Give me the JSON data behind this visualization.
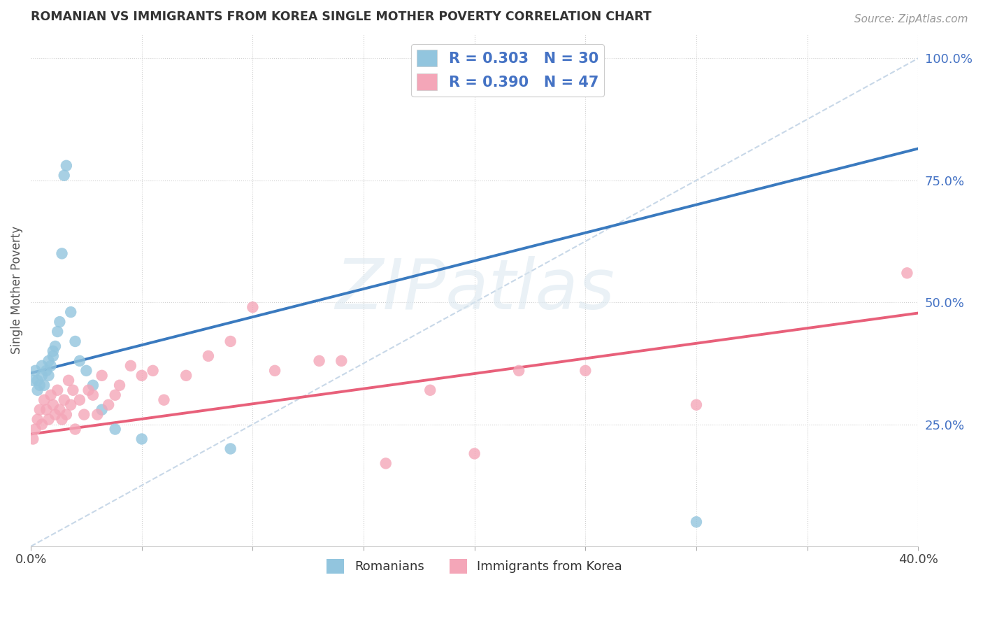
{
  "title": "ROMANIAN VS IMMIGRANTS FROM KOREA SINGLE MOTHER POVERTY CORRELATION CHART",
  "source": "Source: ZipAtlas.com",
  "ylabel": "Single Mother Poverty",
  "xlim": [
    0.0,
    0.4
  ],
  "ylim": [
    0.0,
    1.05
  ],
  "romanian_R": 0.303,
  "romanian_N": 30,
  "korea_R": 0.39,
  "korea_N": 47,
  "romanian_color": "#92c5de",
  "korea_color": "#f4a6b8",
  "trendline_romanian_color": "#3a7abf",
  "trendline_korea_color": "#e8607a",
  "diagonal_color": "#c8d8e8",
  "watermark": "ZIPatlas",
  "romanian_x": [
    0.001,
    0.002,
    0.003,
    0.003,
    0.004,
    0.005,
    0.005,
    0.006,
    0.007,
    0.008,
    0.008,
    0.009,
    0.01,
    0.01,
    0.011,
    0.012,
    0.013,
    0.014,
    0.015,
    0.016,
    0.018,
    0.02,
    0.022,
    0.025,
    0.028,
    0.032,
    0.038,
    0.05,
    0.09,
    0.3
  ],
  "romanian_y": [
    0.34,
    0.36,
    0.32,
    0.34,
    0.33,
    0.35,
    0.37,
    0.33,
    0.36,
    0.35,
    0.38,
    0.37,
    0.4,
    0.39,
    0.41,
    0.44,
    0.46,
    0.6,
    0.76,
    0.78,
    0.48,
    0.42,
    0.38,
    0.36,
    0.33,
    0.28,
    0.24,
    0.22,
    0.2,
    0.05
  ],
  "korea_x": [
    0.001,
    0.002,
    0.003,
    0.004,
    0.005,
    0.006,
    0.007,
    0.008,
    0.009,
    0.01,
    0.011,
    0.012,
    0.013,
    0.014,
    0.015,
    0.016,
    0.017,
    0.018,
    0.019,
    0.02,
    0.022,
    0.024,
    0.026,
    0.028,
    0.03,
    0.032,
    0.035,
    0.038,
    0.04,
    0.045,
    0.05,
    0.055,
    0.06,
    0.07,
    0.08,
    0.09,
    0.1,
    0.11,
    0.13,
    0.14,
    0.16,
    0.18,
    0.2,
    0.22,
    0.25,
    0.3,
    0.395
  ],
  "korea_y": [
    0.22,
    0.24,
    0.26,
    0.28,
    0.25,
    0.3,
    0.28,
    0.26,
    0.31,
    0.29,
    0.27,
    0.32,
    0.28,
    0.26,
    0.3,
    0.27,
    0.34,
    0.29,
    0.32,
    0.24,
    0.3,
    0.27,
    0.32,
    0.31,
    0.27,
    0.35,
    0.29,
    0.31,
    0.33,
    0.37,
    0.35,
    0.36,
    0.3,
    0.35,
    0.39,
    0.42,
    0.49,
    0.36,
    0.38,
    0.38,
    0.17,
    0.32,
    0.19,
    0.36,
    0.36,
    0.29,
    0.56
  ],
  "background_color": "#ffffff",
  "grid_color": "#d0d0d0",
  "trendline_intercept_rom": 0.355,
  "trendline_slope_rom": 1.15,
  "trendline_intercept_kor": 0.23,
  "trendline_slope_kor": 0.62
}
